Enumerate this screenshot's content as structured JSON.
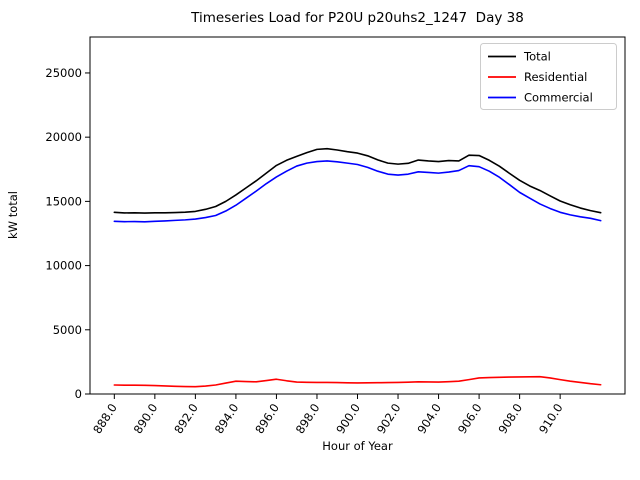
{
  "title": "Timeseries Load for P20U p20uhs2_1247  Day 38",
  "chart_data": {
    "type": "line",
    "title": "Timeseries Load for P20U p20uhs2_1247  Day 38",
    "xlabel": "Hour of Year",
    "ylabel": "kW total",
    "xlim": [
      886.8,
      913.2
    ],
    "ylim": [
      0,
      27800
    ],
    "grid": false,
    "legend_position": "upper right",
    "x_ticks": [
      888,
      890,
      892,
      894,
      896,
      898,
      900,
      902,
      904,
      906,
      908,
      910
    ],
    "x_tick_labels": [
      "888.0",
      "890.0",
      "892.0",
      "894.0",
      "896.0",
      "898.0",
      "900.0",
      "902.0",
      "904.0",
      "906.0",
      "908.0",
      "910.0"
    ],
    "y_ticks": [
      0,
      5000,
      10000,
      15000,
      20000,
      25000
    ],
    "y_tick_labels": [
      "0",
      "5000",
      "10000",
      "15000",
      "20000",
      "25000"
    ],
    "x": [
      888.0,
      888.5,
      889.0,
      889.5,
      890.0,
      890.5,
      891.0,
      891.5,
      892.0,
      892.5,
      893.0,
      893.5,
      894.0,
      894.5,
      895.0,
      895.5,
      896.0,
      896.5,
      897.0,
      897.5,
      898.0,
      898.5,
      899.0,
      899.5,
      900.0,
      900.5,
      901.0,
      901.5,
      902.0,
      902.5,
      903.0,
      903.5,
      904.0,
      904.5,
      905.0,
      905.5,
      906.0,
      906.5,
      907.0,
      907.5,
      908.0,
      908.5,
      909.0,
      909.5,
      910.0,
      910.5,
      911.0,
      911.5,
      912.0
    ],
    "series": [
      {
        "name": "Total",
        "color": "#000000",
        "values": [
          14150,
          14100,
          14110,
          14090,
          14110,
          14110,
          14130,
          14160,
          14220,
          14380,
          14600,
          15000,
          15500,
          16050,
          16600,
          17200,
          17800,
          18200,
          18500,
          18800,
          19050,
          19100,
          19000,
          18870,
          18760,
          18550,
          18230,
          17980,
          17900,
          17960,
          18220,
          18150,
          18100,
          18180,
          18150,
          18600,
          18570,
          18200,
          17740,
          17180,
          16640,
          16200,
          15850,
          15430,
          15030,
          14740,
          14480,
          14280,
          14120
        ]
      },
      {
        "name": "Residential",
        "color": "#ff0000",
        "values": [
          700,
          690,
          690,
          680,
          660,
          630,
          600,
          580,
          570,
          620,
          700,
          850,
          1000,
          970,
          950,
          1050,
          1150,
          1030,
          930,
          910,
          900,
          900,
          890,
          870,
          860,
          870,
          880,
          890,
          900,
          920,
          950,
          940,
          930,
          960,
          1000,
          1120,
          1250,
          1280,
          1300,
          1320,
          1330,
          1340,
          1350,
          1250,
          1120,
          1000,
          900,
          800,
          720
        ]
      },
      {
        "name": "Commercial",
        "color": "#0000ff",
        "values": [
          13450,
          13420,
          13430,
          13410,
          13450,
          13480,
          13520,
          13560,
          13620,
          13740,
          13900,
          14250,
          14700,
          15250,
          15800,
          16380,
          16900,
          17350,
          17750,
          17980,
          18100,
          18150,
          18080,
          17980,
          17870,
          17650,
          17350,
          17120,
          17050,
          17120,
          17300,
          17250,
          17200,
          17280,
          17400,
          17780,
          17700,
          17350,
          16880,
          16300,
          15700,
          15250,
          14800,
          14450,
          14150,
          13950,
          13800,
          13680,
          13500
        ]
      }
    ]
  }
}
